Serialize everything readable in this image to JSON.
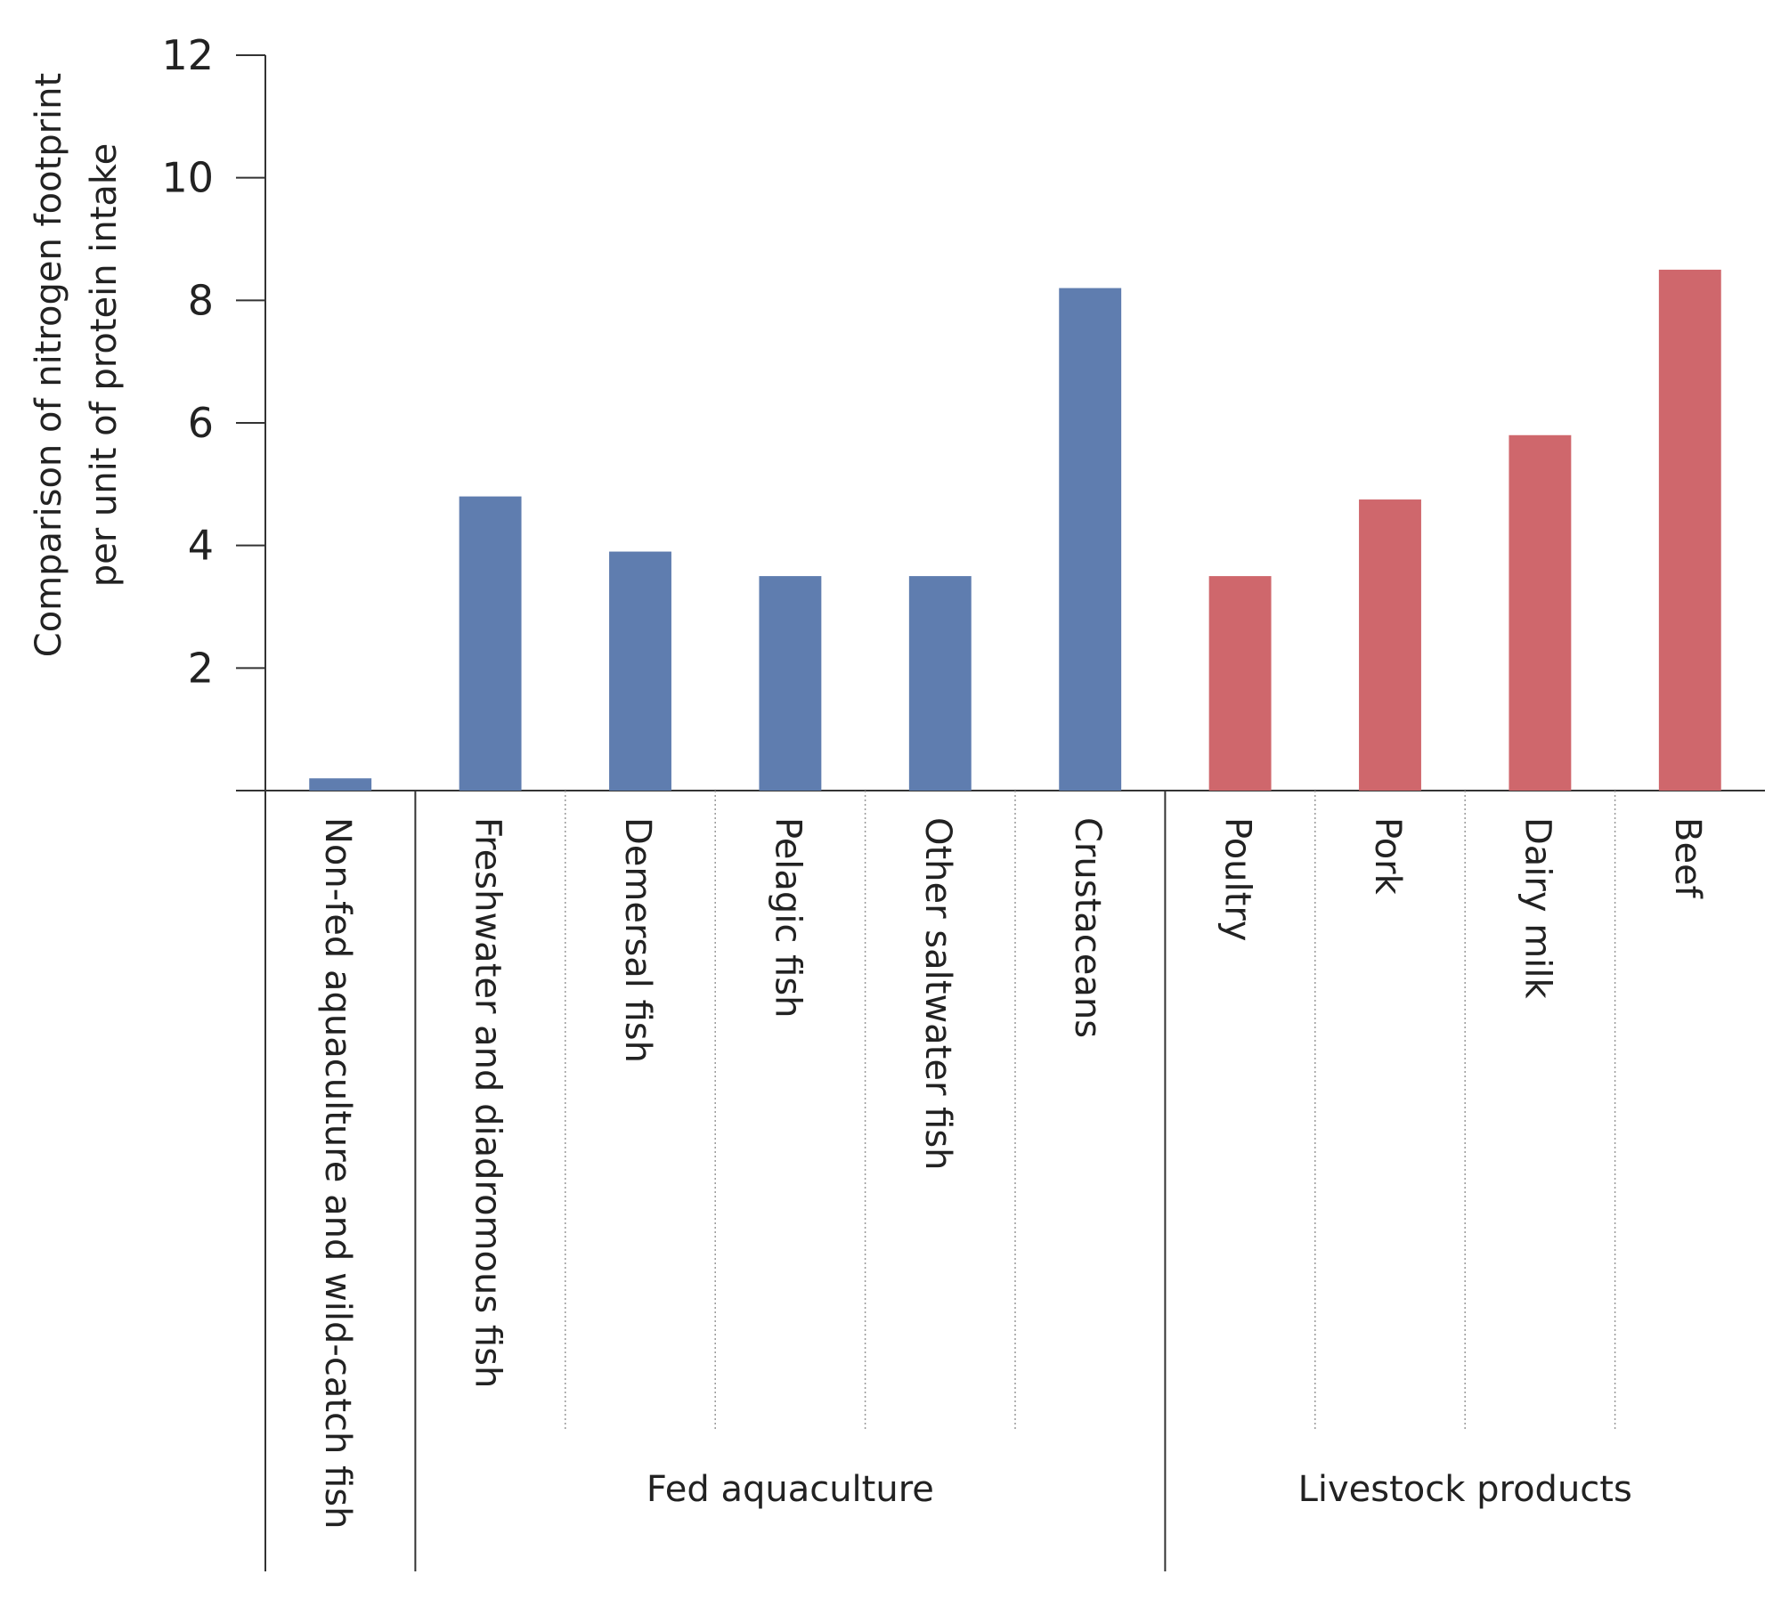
{
  "chart_data": {
    "type": "bar",
    "categories": [
      "Non-fed aquaculture and wild-catch fish",
      "Freshwater and diadromous fish",
      "Demersal fish",
      "Pelagic fish",
      "Other saltwater fish",
      "Crustaceans",
      "Poultry",
      "Pork",
      "Dairy milk",
      "Beef"
    ],
    "values": [
      0.2,
      4.8,
      3.9,
      3.5,
      3.5,
      8.2,
      3.5,
      4.75,
      5.8,
      8.5
    ],
    "groups": [
      {
        "label": "",
        "members": [
          0
        ],
        "color": "#5f7daf"
      },
      {
        "label": "Fed aquaculture",
        "members": [
          1,
          2,
          3,
          4,
          5
        ],
        "color": "#5f7daf"
      },
      {
        "label": "Livestock products",
        "members": [
          6,
          7,
          8,
          9
        ],
        "color": "#cf676c"
      }
    ],
    "ylabel_lines": [
      "Comparison of nitrogen footprint",
      "per unit of protein intake"
    ],
    "yticks": [
      2,
      4,
      6,
      8,
      10,
      12
    ],
    "ylim": [
      0,
      12
    ],
    "grid": false,
    "title": ""
  }
}
